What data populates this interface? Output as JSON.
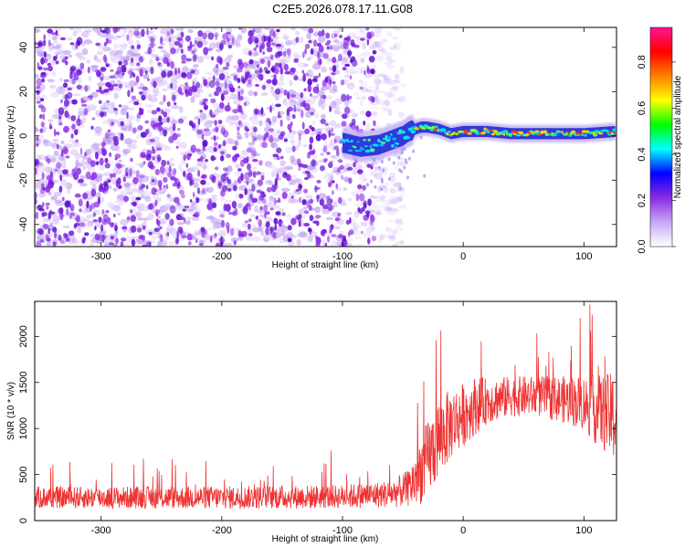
{
  "title": "C2E5.2026.078.17.11.G08",
  "chart_data": [
    {
      "type": "heatmap",
      "xlabel": "Height of straight line (km)",
      "ylabel": "Frequency (Hz)",
      "xlim": [
        -355,
        127
      ],
      "ylim": [
        -50,
        49
      ],
      "xticks": [
        -300,
        -200,
        -100,
        0,
        100
      ],
      "xtick_labels": [
        "-300",
        "-200",
        "-100",
        "0",
        "100"
      ],
      "yticks": [
        -40,
        -20,
        0,
        20,
        40
      ],
      "ytick_labels": [
        "-40",
        "-20",
        "0",
        "20",
        "40"
      ],
      "noise_region_x": [
        -355,
        -65
      ],
      "signal_trace": {
        "x": [
          -100,
          -85,
          -70,
          -60,
          -50,
          -45,
          -40,
          -35,
          -30,
          -20,
          -10,
          0,
          20,
          40,
          60,
          80,
          100,
          127
        ],
        "y": [
          -3,
          -5,
          -4,
          -2,
          0,
          2,
          3,
          4,
          4,
          3,
          1,
          2,
          2,
          1,
          1,
          1,
          1,
          2
        ]
      },
      "colorbar": {
        "label": "Normalized spectral amplitude",
        "range": [
          0,
          0.95
        ],
        "ticks": [
          0.0,
          0.2,
          0.4,
          0.6,
          0.8
        ],
        "tick_labels": [
          "0.0",
          "0.2",
          "0.4",
          "0.6",
          "0.8"
        ],
        "colors": [
          "#ffffff",
          "#c8a8f8",
          "#8a2be2",
          "#0000ff",
          "#00ffff",
          "#00ff00",
          "#ffff00",
          "#ff8000",
          "#ff0000",
          "#ff1493"
        ]
      }
    },
    {
      "type": "line",
      "xlabel": "Height of straight line (km)",
      "ylabel": "SNR (10 * v/v)",
      "xlim": [
        -355,
        127
      ],
      "ylim": [
        0,
        2380
      ],
      "xticks": [
        -300,
        -200,
        -100,
        0,
        100
      ],
      "xtick_labels": [
        "-300",
        "-200",
        "-100",
        "0",
        "100"
      ],
      "yticks": [
        0,
        500,
        1000,
        1500,
        2000
      ],
      "ytick_labels": [
        "0",
        "500",
        "1000",
        "1500",
        "2000"
      ],
      "color": "#ee3333",
      "envelope": {
        "x": [
          -355,
          -300,
          -200,
          -100,
          -60,
          -45,
          -40,
          -30,
          -20,
          -10,
          0,
          10,
          20,
          40,
          60,
          80,
          100,
          110,
          120,
          127
        ],
        "mean": [
          250,
          250,
          250,
          260,
          290,
          350,
          450,
          650,
          900,
          1050,
          1150,
          1250,
          1300,
          1350,
          1350,
          1320,
          1280,
          1200,
          1150,
          1100
        ],
        "spread": [
          120,
          120,
          125,
          130,
          150,
          200,
          320,
          420,
          450,
          380,
          350,
          320,
          250,
          220,
          220,
          250,
          300,
          380,
          450,
          500
        ]
      }
    }
  ]
}
